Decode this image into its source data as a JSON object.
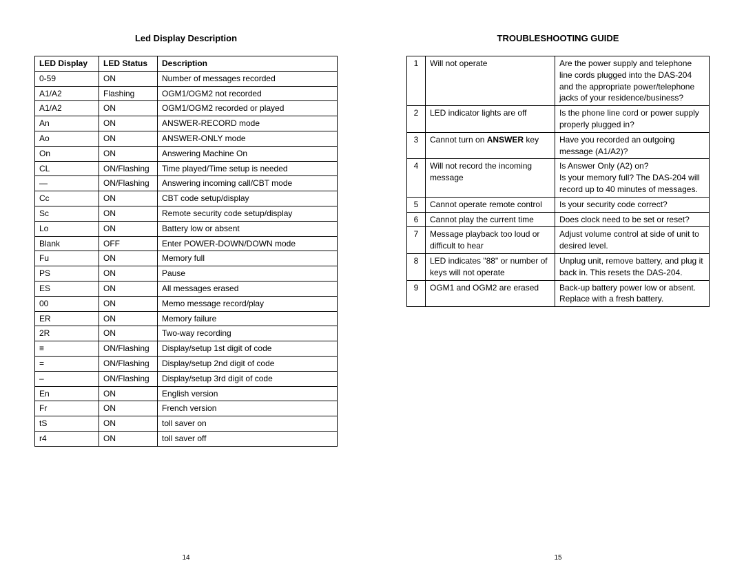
{
  "left": {
    "title": "Led Display Description",
    "headers": [
      "LED Display",
      "LED Status",
      "Description"
    ],
    "rows": [
      [
        "0-59",
        "ON",
        "Number of messages recorded"
      ],
      [
        "A1/A2",
        "Flashing",
        "OGM1/OGM2 not recorded"
      ],
      [
        "A1/A2",
        "ON",
        "OGM1/OGM2 recorded or played"
      ],
      [
        "An",
        "ON",
        "ANSWER-RECORD mode"
      ],
      [
        "Ao",
        "ON",
        "ANSWER-ONLY mode"
      ],
      [
        "On",
        "ON",
        "Answering Machine On"
      ],
      [
        "CL",
        "ON/Flashing",
        "Time played/Time setup is needed"
      ],
      [
        "—",
        "ON/Flashing",
        "Answering incoming call/CBT mode"
      ],
      [
        "Cc",
        "ON",
        "CBT code setup/display"
      ],
      [
        "Sc",
        "ON",
        "Remote security code setup/display"
      ],
      [
        "Lo",
        "ON",
        "Battery low or absent"
      ],
      [
        "Blank",
        "OFF",
        "Enter POWER-DOWN/DOWN mode"
      ],
      [
        "Fu",
        "ON",
        "Memory full"
      ],
      [
        "PS",
        "ON",
        "Pause"
      ],
      [
        "ES",
        "ON",
        "All messages erased"
      ],
      [
        "00",
        "ON",
        "Memo message record/play"
      ],
      [
        "ER",
        "ON",
        "Memory failure"
      ],
      [
        "2R",
        "ON",
        "Two-way recording"
      ],
      [
        "≡",
        "ON/Flashing",
        "Display/setup 1st digit of code"
      ],
      [
        "=",
        "ON/Flashing",
        "Display/setup 2nd digit of code"
      ],
      [
        "–",
        "ON/Flashing",
        "Display/setup 3rd digit of code"
      ],
      [
        "En",
        "ON",
        "English version"
      ],
      [
        "Fr",
        "ON",
        "French version"
      ],
      [
        "tS",
        "ON",
        "toll saver on"
      ],
      [
        "r4",
        "ON",
        "toll saver off"
      ]
    ],
    "pagenum": "14"
  },
  "right": {
    "title": "TROUBLESHOOTING GUIDE",
    "rows": [
      {
        "n": "1",
        "p": "Will not operate",
        "s": "Are the power supply and telephone line cords plugged into the DAS-204 and the appropriate power/telephone jacks of your residence/business?"
      },
      {
        "n": "2",
        "p": "LED indicator lights are off",
        "s": "Is the phone line cord or power supply properly plugged in?"
      },
      {
        "n": "3",
        "p_pre": "Cannot turn on ",
        "p_bold": "ANSWER",
        "p_post": " key",
        "s": "Have you recorded an outgoing message (A1/A2)?"
      },
      {
        "n": "4",
        "p": "Will not record the incoming message",
        "s": "Is Answer Only (A2) on?\nIs your memory full? The DAS-204 will record up to 40 minutes of messages."
      },
      {
        "n": "5",
        "p": "Cannot operate remote control",
        "s": "Is your security code correct?"
      },
      {
        "n": "6",
        "p": "Cannot play the current time",
        "s": "Does clock need to be set or reset?"
      },
      {
        "n": "7",
        "p": "Message playback too loud or difficult to hear",
        "s": "Adjust volume control at side of unit to desired level."
      },
      {
        "n": "8",
        "p": "LED indicates \"88\" or number of keys will not operate",
        "s": "Unplug unit, remove battery, and plug it back in. This resets the DAS-204."
      },
      {
        "n": "9",
        "p": "OGM1 and OGM2 are erased",
        "s": "Back-up battery power low or absent. Replace with a fresh battery."
      }
    ],
    "pagenum": "15"
  }
}
